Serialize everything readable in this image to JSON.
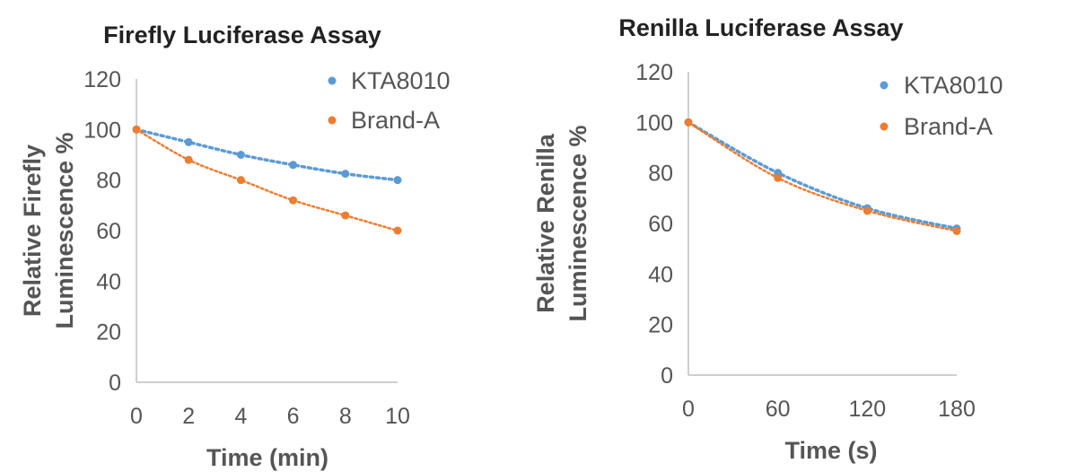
{
  "colors": {
    "KTA8010": "#5b9bd5",
    "Brand-A": "#ed7d31",
    "axis": "#bfbfbf",
    "text": "#555555"
  },
  "chart_data": [
    {
      "type": "scatter",
      "title": "Firefly Luciferase Assay",
      "xlabel": "Time (min)",
      "ylabel_lines": [
        "Relative Firefly",
        "Luminescence %"
      ],
      "xlim": [
        0,
        10
      ],
      "ylim": [
        0,
        120
      ],
      "xticks": [
        0,
        2,
        4,
        6,
        8,
        10
      ],
      "yticks": [
        0,
        20,
        40,
        60,
        80,
        100,
        120
      ],
      "x": [
        0,
        2,
        4,
        6,
        8,
        10
      ],
      "legend_position": "top-right",
      "trendline": "dotted",
      "series": [
        {
          "name": "KTA8010",
          "values": [
            100,
            95,
            90,
            86,
            82.5,
            80
          ]
        },
        {
          "name": "Brand-A",
          "values": [
            100,
            88,
            80,
            72,
            66,
            60
          ]
        }
      ]
    },
    {
      "type": "scatter",
      "title": "Renilla Luciferase Assay",
      "xlabel": "Time (s)",
      "ylabel_lines": [
        "Relative Renilla",
        "Luminescence %"
      ],
      "xlim": [
        0,
        180
      ],
      "ylim": [
        0,
        120
      ],
      "xticks": [
        0,
        60,
        120,
        180
      ],
      "yticks": [
        0,
        20,
        40,
        60,
        80,
        100,
        120
      ],
      "x": [
        0,
        60,
        120,
        180
      ],
      "legend_position": "top-right",
      "trendline": "dotted",
      "series": [
        {
          "name": "KTA8010",
          "values": [
            100,
            80,
            66,
            58
          ]
        },
        {
          "name": "Brand-A",
          "values": [
            100,
            78,
            65,
            57
          ]
        }
      ]
    }
  ]
}
